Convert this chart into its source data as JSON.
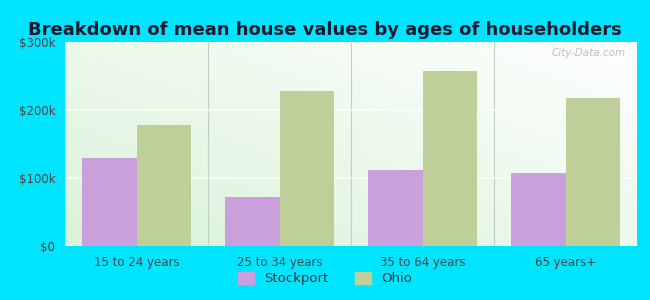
{
  "title": "Breakdown of mean house values by ages of householders",
  "categories": [
    "15 to 24 years",
    "25 to 34 years",
    "35 to 64 years",
    "65 years+"
  ],
  "stockport_values": [
    130000,
    72000,
    112000,
    107000
  ],
  "ohio_values": [
    178000,
    228000,
    258000,
    218000
  ],
  "stockport_color": "#c9a0dc",
  "ohio_color": "#bfcf9a",
  "outer_background": "#00e5ff",
  "ylim": [
    0,
    300000
  ],
  "yticks": [
    0,
    100000,
    200000,
    300000
  ],
  "ytick_labels": [
    "$0",
    "$100k",
    "$200k",
    "$300k"
  ],
  "legend_labels": [
    "Stockport",
    "Ohio"
  ],
  "title_fontsize": 13,
  "bar_width": 0.38
}
